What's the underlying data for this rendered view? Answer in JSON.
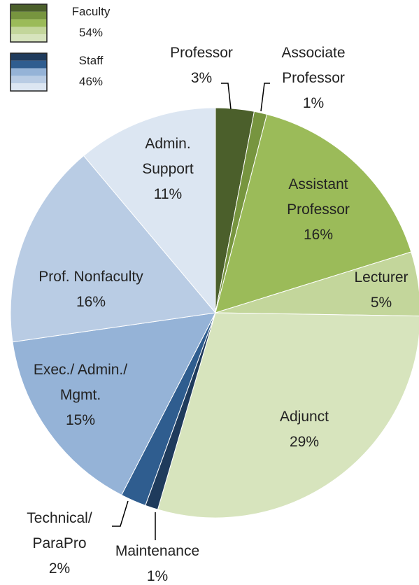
{
  "chart_data": {
    "type": "pie",
    "categories": [
      "Professor",
      "Associate Professor",
      "Assistant Professor",
      "Lecturer",
      "Adjunct",
      "Maintenance",
      "Technical/ ParaPro",
      "Exec./ Admin./ Mgmt.",
      "Prof. Nonfaculty",
      "Admin. Support"
    ],
    "values": [
      3,
      1,
      16,
      5,
      29,
      1,
      2,
      15,
      16,
      11
    ],
    "value_labels": [
      "3%",
      "1%",
      "16%",
      "5%",
      "29%",
      "1%",
      "2%",
      "15%",
      "16%",
      "11%"
    ],
    "colors": [
      "#4b5f2b",
      "#77953f",
      "#9bbb59",
      "#c3d69b",
      "#d7e4bd",
      "#1f3b5c",
      "#2f5d8f",
      "#95b3d7",
      "#b9cce4",
      "#dce6f2"
    ],
    "legend": [
      {
        "name": "Faculty",
        "value": 54,
        "value_label": "54%",
        "colors": [
          "#4b5f2b",
          "#77953f",
          "#9bbb59",
          "#c3d69b",
          "#d7e4bd"
        ]
      },
      {
        "name": "Staff",
        "value": 46,
        "value_label": "46%",
        "colors": [
          "#1f3b5c",
          "#2f5d8f",
          "#95b3d7",
          "#b9cce4",
          "#dce6f2"
        ]
      }
    ]
  }
}
